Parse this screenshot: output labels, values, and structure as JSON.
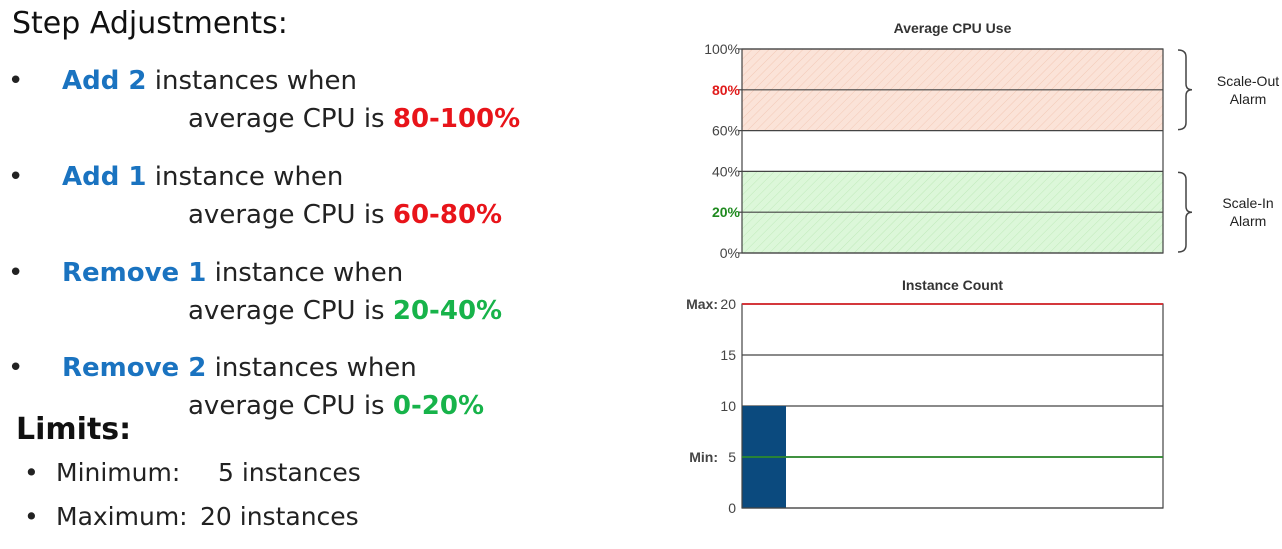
{
  "left": {
    "title": "Step Adjustments:",
    "bullet": "•",
    "rules": [
      {
        "action": "Add 2",
        "unit": " instances when",
        "condition": "average CPU is ",
        "range": "80-100%",
        "range_color": "red"
      },
      {
        "action": "Add 1",
        "unit": " instance when",
        "condition": "average CPU is ",
        "range": "60-80%",
        "range_color": "red"
      },
      {
        "action": "Remove 1",
        "unit": " instance when",
        "condition": "average CPU is ",
        "range": "20-40%",
        "range_color": "green"
      },
      {
        "action": "Remove 2",
        "unit": " instances when",
        "condition": "average CPU is ",
        "range": "0-20%",
        "range_color": "green"
      }
    ],
    "limits_title": "Limits:",
    "limits": [
      {
        "label": "Minimum:",
        "value": "5 instances"
      },
      {
        "label": "Maximum:",
        "value": "20 instances"
      }
    ]
  },
  "colors": {
    "blue": "#1a73c0",
    "red": "#e8141a",
    "green": "#17b34a",
    "bar": "#0b4a7e",
    "scale_out_fill": "#fbe3d8",
    "scale_in_fill": "#dcf7d9",
    "max_line": "#d9262b",
    "min_line": "#2c8a2c"
  },
  "chart_data": [
    {
      "type": "area",
      "title": "Average CPU Use",
      "y_ticks": [
        "0%",
        "20%",
        "40%",
        "60%",
        "80%",
        "100%"
      ],
      "y_tick_values": [
        0,
        20,
        40,
        60,
        80,
        100
      ],
      "highlight_ticks": {
        "80%": "red",
        "20%": "green"
      },
      "ylim": [
        0,
        100
      ],
      "bands": [
        {
          "label": "Scale-Out Alarm",
          "from": 60,
          "to": 100,
          "color": "scale_out_fill"
        },
        {
          "label": "Scale-In Alarm",
          "from": 0,
          "to": 40,
          "color": "scale_in_fill"
        }
      ],
      "band_labels": [
        {
          "line1": "Scale-Out",
          "line2": "Alarm",
          "from": 60,
          "to": 100
        },
        {
          "line1": "Scale-In",
          "line2": "Alarm",
          "from": 0,
          "to": 40
        }
      ]
    },
    {
      "type": "bar",
      "title": "Instance Count",
      "y_ticks": [
        {
          "value": 0,
          "prefix": "",
          "label": "0"
        },
        {
          "value": 5,
          "prefix": "Min:",
          "label": "5"
        },
        {
          "value": 10,
          "prefix": "",
          "label": "10"
        },
        {
          "value": 15,
          "prefix": "",
          "label": "15"
        },
        {
          "value": 20,
          "prefix": "Max:",
          "label": "20"
        }
      ],
      "ylim": [
        0,
        20
      ],
      "bars": [
        {
          "value": 10,
          "position": 0
        }
      ],
      "reference_lines": [
        {
          "value": 20,
          "color": "max_line"
        },
        {
          "value": 5,
          "color": "min_line"
        }
      ]
    }
  ]
}
